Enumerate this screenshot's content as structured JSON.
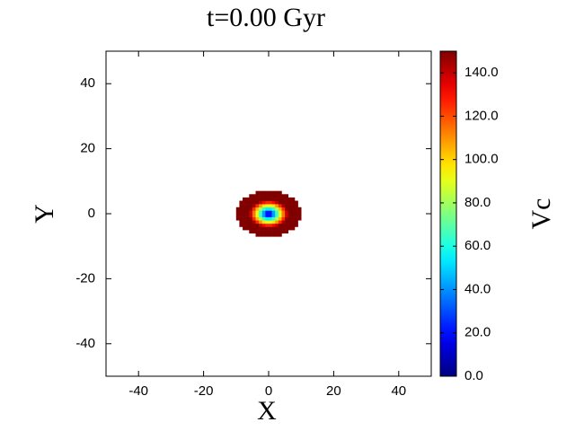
{
  "chart_data": {
    "type": "heatmap",
    "title": "t=0.00 Gyr",
    "x_label": "X",
    "y_label": "Y",
    "colorbar_label": "Vc",
    "colormap": "jet",
    "x": [
      -9.5,
      -8.5,
      -7.5,
      -6.5,
      -5.5,
      -4.5,
      -3.5,
      -2.5,
      -1.5,
      -0.5,
      0.5,
      1.5,
      2.5,
      3.5,
      4.5,
      5.5,
      6.5,
      7.5,
      8.5,
      9.5
    ],
    "y": [
      -6.5,
      -5.5,
      -4.5,
      -3.5,
      -2.5,
      -1.5,
      -0.5,
      0.5,
      1.5,
      2.5,
      3.5,
      4.5,
      5.5,
      6.5
    ],
    "values": [
      [
        null,
        null,
        null,
        null,
        null,
        null,
        150,
        150,
        150,
        150,
        150,
        150,
        150,
        150,
        null,
        null,
        null,
        null,
        null,
        null
      ],
      [
        null,
        null,
        null,
        null,
        150,
        150,
        150,
        150,
        150,
        150,
        150,
        150,
        150,
        150,
        150,
        150,
        null,
        null,
        null,
        null
      ],
      [
        null,
        null,
        150,
        150,
        150,
        150,
        150,
        150,
        150,
        150,
        150,
        150,
        150,
        150,
        150,
        150,
        150,
        150,
        null,
        null
      ],
      [
        null,
        150,
        150,
        150,
        150,
        150,
        150,
        140,
        131,
        126,
        126,
        131,
        140,
        150,
        150,
        150,
        150,
        150,
        150,
        null
      ],
      [
        null,
        150,
        150,
        150,
        150,
        144,
        125,
        109,
        97,
        90,
        90,
        97,
        109,
        125,
        144,
        150,
        150,
        150,
        150,
        null
      ],
      [
        150,
        150,
        150,
        150,
        148,
        125,
        103,
        82,
        65,
        55,
        55,
        65,
        82,
        103,
        125,
        148,
        150,
        150,
        150,
        150
      ],
      [
        150,
        150,
        150,
        150,
        139,
        114,
        89,
        65,
        42,
        22,
        22,
        42,
        65,
        89,
        114,
        139,
        150,
        150,
        150,
        150
      ],
      [
        150,
        150,
        150,
        150,
        139,
        114,
        89,
        65,
        42,
        22,
        22,
        42,
        65,
        89,
        114,
        139,
        150,
        150,
        150,
        150
      ],
      [
        150,
        150,
        150,
        150,
        148,
        125,
        103,
        82,
        65,
        55,
        55,
        65,
        82,
        103,
        125,
        148,
        150,
        150,
        150,
        150
      ],
      [
        null,
        150,
        150,
        150,
        150,
        144,
        125,
        109,
        97,
        90,
        90,
        97,
        109,
        125,
        144,
        150,
        150,
        150,
        150,
        null
      ],
      [
        null,
        150,
        150,
        150,
        150,
        150,
        150,
        140,
        131,
        126,
        126,
        131,
        140,
        150,
        150,
        150,
        150,
        150,
        150,
        null
      ],
      [
        null,
        null,
        150,
        150,
        150,
        150,
        150,
        150,
        150,
        150,
        150,
        150,
        150,
        150,
        150,
        150,
        150,
        150,
        null,
        null
      ],
      [
        null,
        null,
        null,
        null,
        150,
        150,
        150,
        150,
        150,
        150,
        150,
        150,
        150,
        150,
        150,
        150,
        null,
        null,
        null,
        null
      ],
      [
        null,
        null,
        null,
        null,
        null,
        null,
        150,
        150,
        150,
        150,
        150,
        150,
        150,
        150,
        null,
        null,
        null,
        null,
        null,
        null
      ]
    ],
    "xlim": [
      -50,
      50
    ],
    "ylim": [
      -50,
      50
    ],
    "xticks": [
      -40,
      -20,
      0,
      20,
      40
    ],
    "yticks": [
      -40,
      -20,
      0,
      20,
      40
    ],
    "clim": [
      0,
      150
    ],
    "cticks": [
      {
        "value": 0,
        "label": "0.0"
      },
      {
        "value": 20,
        "label": "20.0"
      },
      {
        "value": 40,
        "label": "40.0"
      },
      {
        "value": 60,
        "label": "60.0"
      },
      {
        "value": 80,
        "label": "80.0"
      },
      {
        "value": 100,
        "label": "100.0"
      },
      {
        "value": 120,
        "label": "120.0"
      },
      {
        "value": 140,
        "label": "140.0"
      }
    ]
  }
}
